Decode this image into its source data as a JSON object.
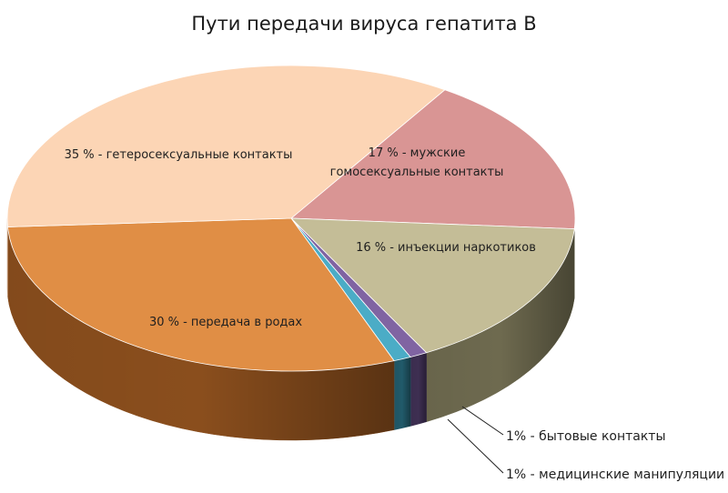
{
  "chart_data": {
    "type": "pie",
    "title": "Пути передачи вируса гепатита B",
    "slices": [
      {
        "value": 17,
        "label_lines": [
          "17 % - мужские",
          "гомосексуальные контакты"
        ],
        "color": "#d99594",
        "side": "#a86a69"
      },
      {
        "value": 16,
        "label_lines": [
          "16 % - инъекции наркотиков"
        ],
        "color": "#c4bd97",
        "side": "#6e6a4f"
      },
      {
        "value": 1,
        "label_lines": [
          "1% - бытовые контакты"
        ],
        "color": "#8064a2",
        "side": "#3e2f52",
        "external": true
      },
      {
        "value": 1,
        "label_lines": [
          "1% - медицинские манипуляции"
        ],
        "color": "#4bacc6",
        "side": "#215a6a",
        "external": true
      },
      {
        "value": 30,
        "label_lines": [
          "30 % - передача в родах"
        ],
        "color": "#e08e45",
        "side": "#8a4e1d"
      },
      {
        "value": 35,
        "label_lines": [
          "35 % - гетеросексуальные контакты"
        ],
        "color": "#fcd5b5",
        "side": "#c9a287"
      }
    ]
  }
}
